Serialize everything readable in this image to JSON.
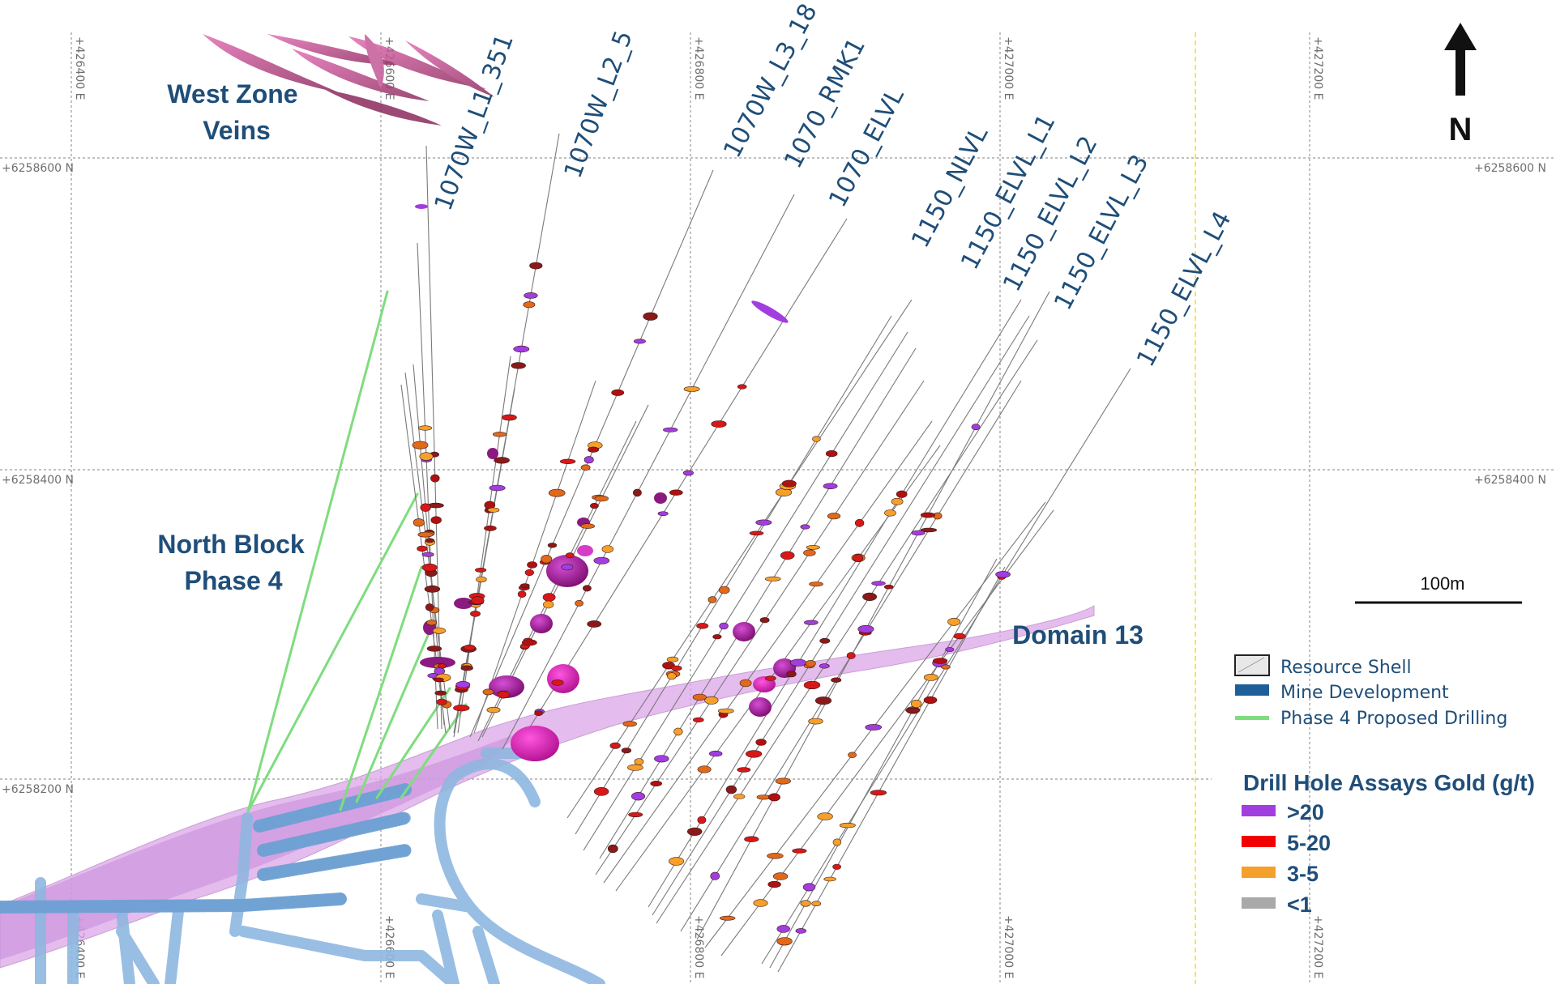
{
  "map": {
    "north_arrow": {
      "label": "N"
    },
    "grid": {
      "eastings": [
        "+426400 E",
        "+426600 E",
        "+426800 E",
        "+427000 E",
        "+427200 E"
      ],
      "northings": [
        "+6258600 N",
        "+6258400 N",
        "+6258200 N"
      ]
    },
    "scale_bar": {
      "label": "100m"
    },
    "areas": {
      "west_zone_line1": "West Zone",
      "west_zone_line2": "Veins",
      "north_block_line1": "North Block",
      "north_block_line2": "Phase 4",
      "domain13": "Domain 13"
    },
    "drill_holes": [
      "1070W_L1_351",
      "1070W_L2_5",
      "1070W_L3_18",
      "1070_RMK1",
      "1070_ELVL",
      "1150_NLVL",
      "1150_ELVL_L1",
      "1150_ELVL_L2",
      "1150_ELVL_L3",
      "1150_ELVL_L4"
    ],
    "legend": {
      "items": [
        {
          "label": "Resource Shell",
          "icon": "resource-shell-swatch"
        },
        {
          "label": "Mine Development",
          "color": "#1f5f99"
        },
        {
          "label": "Phase 4 Proposed Drilling",
          "color": "#7fdc7f"
        }
      ],
      "assays_title": "Drill Hole Assays Gold (g/t)",
      "grades": [
        {
          "label": ">20",
          "color": "#a23de0"
        },
        {
          "label": "5-20",
          "color": "#f20000"
        },
        {
          "label": "3-5",
          "color": "#f5a02a"
        },
        {
          "label": "<1",
          "color": "#a9a9a9"
        }
      ]
    }
  }
}
